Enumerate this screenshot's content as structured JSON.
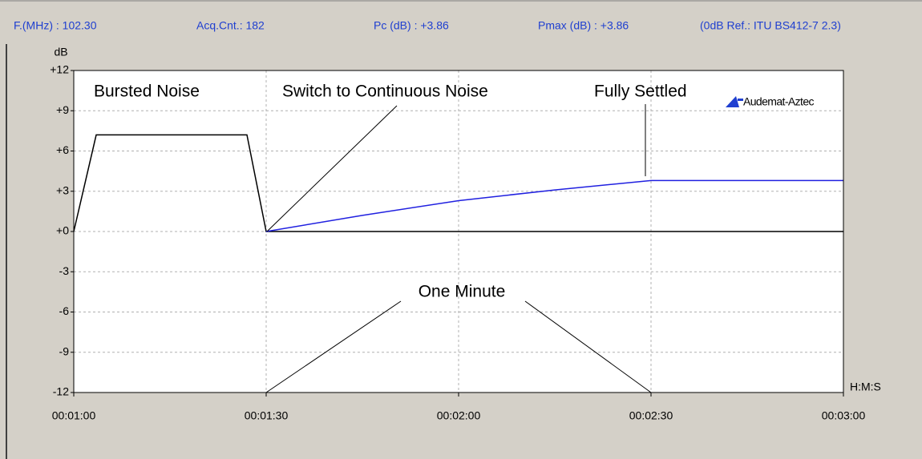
{
  "header": [
    "F.(MHz) : 102.30",
    "Acq.Cnt.: 182",
    "Pc (dB) : +3.86",
    "Pmax (dB) : +3.86",
    "(0dB Ref.: ITU BS412-7 2.3)"
  ],
  "chart_data": {
    "type": "line",
    "y_label": "dB",
    "x_label": "H:M:S",
    "logo": "Audemat-Aztec",
    "annotations": [
      "Bursted Noise",
      "Switch to Continuous Noise",
      "Fully Settled",
      "One Minute"
    ],
    "xlim": [
      60,
      180
    ],
    "xticks": [
      {
        "value": 60,
        "label": "00:01:00"
      },
      {
        "value": 90,
        "label": "00:01:30"
      },
      {
        "value": 120,
        "label": "00:02:00"
      },
      {
        "value": 150,
        "label": "00:02:30"
      },
      {
        "value": 180,
        "label": "00:03:00"
      }
    ],
    "ylim": [
      -12,
      12
    ],
    "yticks": [
      {
        "value": 12,
        "label": "+12"
      },
      {
        "value": 9,
        "label": "+9"
      },
      {
        "value": 6,
        "label": "+6"
      },
      {
        "value": 3,
        "label": "+3"
      },
      {
        "value": 0,
        "label": "+0"
      },
      -3,
      -6,
      -9,
      -12
    ],
    "grid": true,
    "series": [
      {
        "color": "#000000",
        "x": [
          60,
          63.5,
          87,
          90,
          180
        ],
        "values": [
          0,
          7.2,
          7.2,
          0,
          0
        ]
      },
      {
        "color": "#2020e0",
        "x": [
          90,
          105,
          120,
          135,
          150,
          180
        ],
        "values": [
          0,
          1.2,
          2.3,
          3.1,
          3.8,
          3.8
        ]
      }
    ]
  }
}
